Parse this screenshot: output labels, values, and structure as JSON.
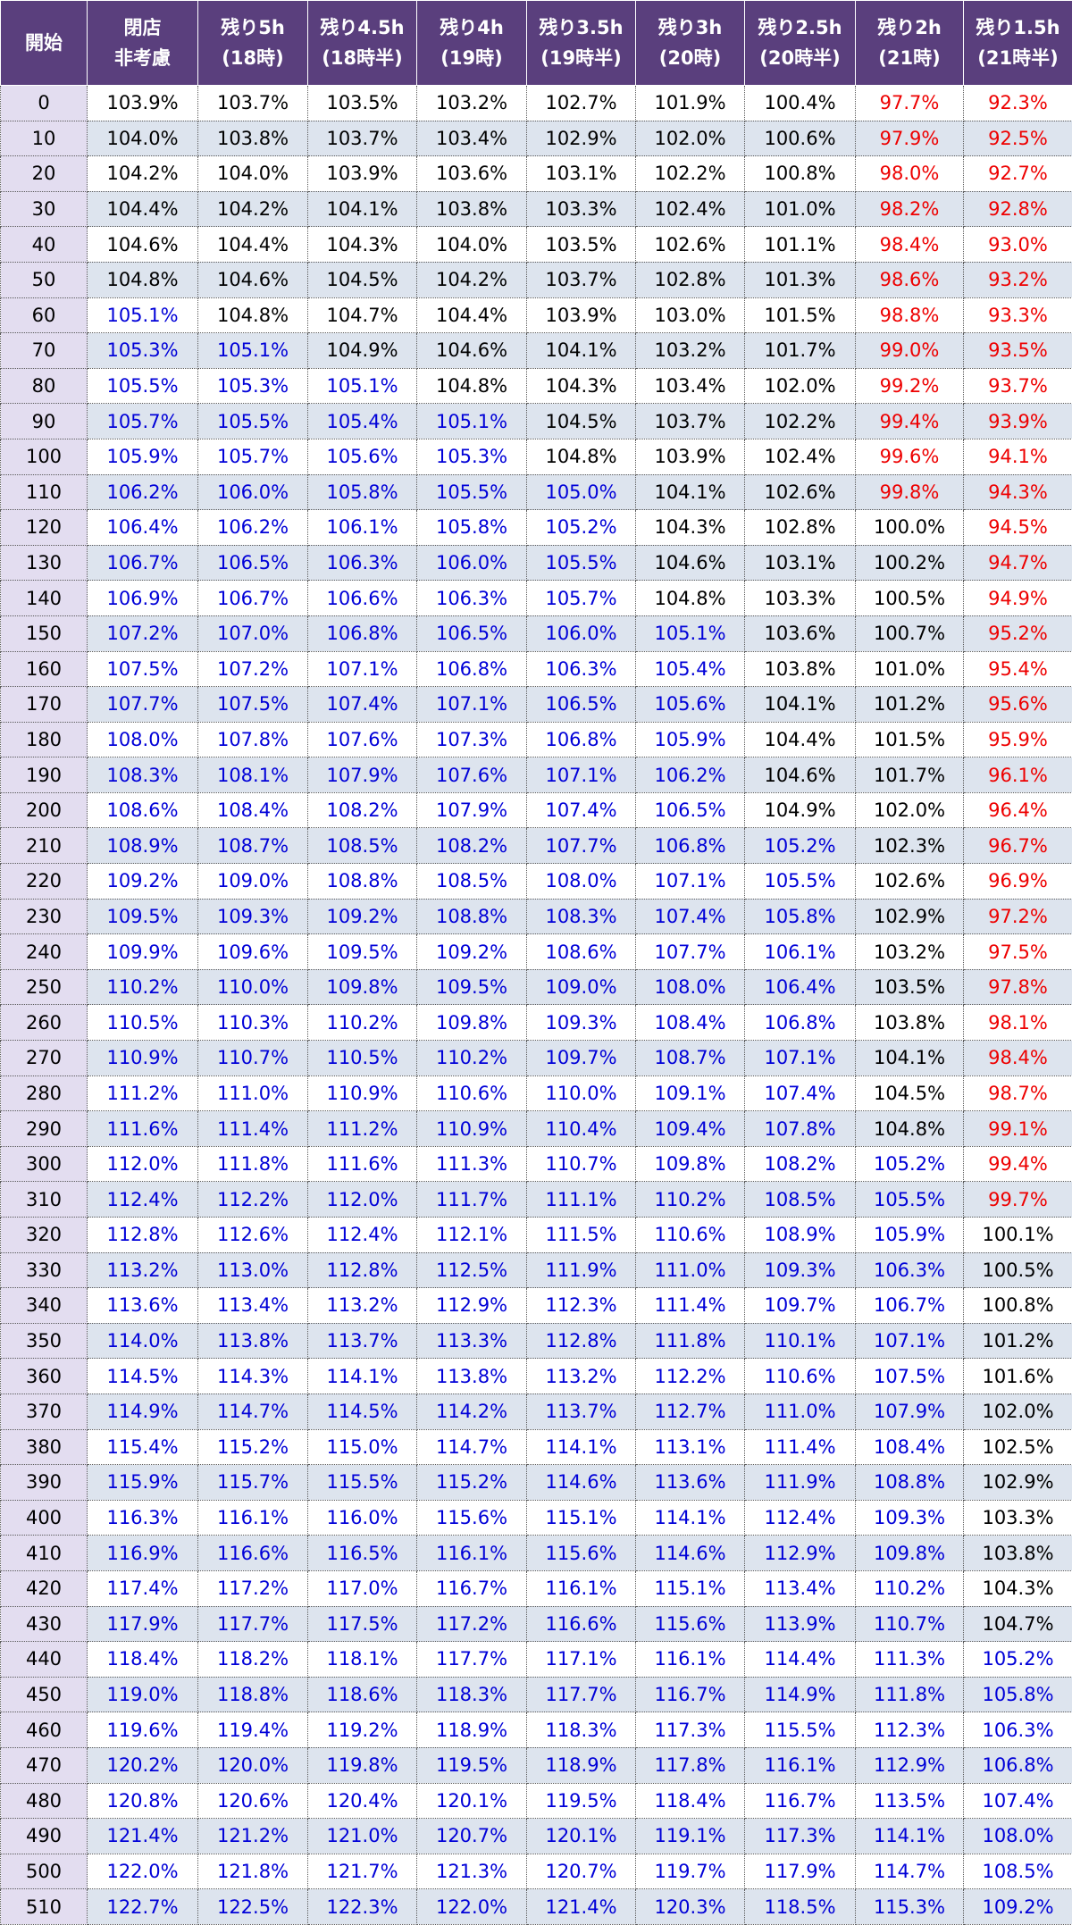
{
  "table": {
    "headers": [
      [
        "開始",
        ""
      ],
      [
        "閉店",
        "非考慮"
      ],
      [
        "残り5h",
        "(18時)"
      ],
      [
        "残り4.5h",
        "(18時半)"
      ],
      [
        "残り4h",
        "(19時)"
      ],
      [
        "残り3.5h",
        "(19時半)"
      ],
      [
        "残り3h",
        "(20時)"
      ],
      [
        "残り2.5h",
        "(20時半)"
      ],
      [
        "残り2h",
        "(21時)"
      ],
      [
        "残り1.5h",
        "(21時半)"
      ]
    ],
    "colors": {
      "header_bg": "#5a3f7d",
      "stripe_bg": "#dde4ee",
      "start_col_bg": "#e3ddf0",
      "below_100": "#ee0000",
      "near_100": "#000000",
      "above_105": "#0000d8"
    },
    "rows": [
      [
        "0",
        "103.9%",
        "103.7%",
        "103.5%",
        "103.2%",
        "102.7%",
        "101.9%",
        "100.4%",
        "97.7%",
        "92.3%"
      ],
      [
        "10",
        "104.0%",
        "103.8%",
        "103.7%",
        "103.4%",
        "102.9%",
        "102.0%",
        "100.6%",
        "97.9%",
        "92.5%"
      ],
      [
        "20",
        "104.2%",
        "104.0%",
        "103.9%",
        "103.6%",
        "103.1%",
        "102.2%",
        "100.8%",
        "98.0%",
        "92.7%"
      ],
      [
        "30",
        "104.4%",
        "104.2%",
        "104.1%",
        "103.8%",
        "103.3%",
        "102.4%",
        "101.0%",
        "98.2%",
        "92.8%"
      ],
      [
        "40",
        "104.6%",
        "104.4%",
        "104.3%",
        "104.0%",
        "103.5%",
        "102.6%",
        "101.1%",
        "98.4%",
        "93.0%"
      ],
      [
        "50",
        "104.8%",
        "104.6%",
        "104.5%",
        "104.2%",
        "103.7%",
        "102.8%",
        "101.3%",
        "98.6%",
        "93.2%"
      ],
      [
        "60",
        "105.1%",
        "104.8%",
        "104.7%",
        "104.4%",
        "103.9%",
        "103.0%",
        "101.5%",
        "98.8%",
        "93.3%"
      ],
      [
        "70",
        "105.3%",
        "105.1%",
        "104.9%",
        "104.6%",
        "104.1%",
        "103.2%",
        "101.7%",
        "99.0%",
        "93.5%"
      ],
      [
        "80",
        "105.5%",
        "105.3%",
        "105.1%",
        "104.8%",
        "104.3%",
        "103.4%",
        "102.0%",
        "99.2%",
        "93.7%"
      ],
      [
        "90",
        "105.7%",
        "105.5%",
        "105.4%",
        "105.1%",
        "104.5%",
        "103.7%",
        "102.2%",
        "99.4%",
        "93.9%"
      ],
      [
        "100",
        "105.9%",
        "105.7%",
        "105.6%",
        "105.3%",
        "104.8%",
        "103.9%",
        "102.4%",
        "99.6%",
        "94.1%"
      ],
      [
        "110",
        "106.2%",
        "106.0%",
        "105.8%",
        "105.5%",
        "105.0%",
        "104.1%",
        "102.6%",
        "99.8%",
        "94.3%"
      ],
      [
        "120",
        "106.4%",
        "106.2%",
        "106.1%",
        "105.8%",
        "105.2%",
        "104.3%",
        "102.8%",
        "100.0%",
        "94.5%"
      ],
      [
        "130",
        "106.7%",
        "106.5%",
        "106.3%",
        "106.0%",
        "105.5%",
        "104.6%",
        "103.1%",
        "100.2%",
        "94.7%"
      ],
      [
        "140",
        "106.9%",
        "106.7%",
        "106.6%",
        "106.3%",
        "105.7%",
        "104.8%",
        "103.3%",
        "100.5%",
        "94.9%"
      ],
      [
        "150",
        "107.2%",
        "107.0%",
        "106.8%",
        "106.5%",
        "106.0%",
        "105.1%",
        "103.6%",
        "100.7%",
        "95.2%"
      ],
      [
        "160",
        "107.5%",
        "107.2%",
        "107.1%",
        "106.8%",
        "106.3%",
        "105.4%",
        "103.8%",
        "101.0%",
        "95.4%"
      ],
      [
        "170",
        "107.7%",
        "107.5%",
        "107.4%",
        "107.1%",
        "106.5%",
        "105.6%",
        "104.1%",
        "101.2%",
        "95.6%"
      ],
      [
        "180",
        "108.0%",
        "107.8%",
        "107.6%",
        "107.3%",
        "106.8%",
        "105.9%",
        "104.4%",
        "101.5%",
        "95.9%"
      ],
      [
        "190",
        "108.3%",
        "108.1%",
        "107.9%",
        "107.6%",
        "107.1%",
        "106.2%",
        "104.6%",
        "101.7%",
        "96.1%"
      ],
      [
        "200",
        "108.6%",
        "108.4%",
        "108.2%",
        "107.9%",
        "107.4%",
        "106.5%",
        "104.9%",
        "102.0%",
        "96.4%"
      ],
      [
        "210",
        "108.9%",
        "108.7%",
        "108.5%",
        "108.2%",
        "107.7%",
        "106.8%",
        "105.2%",
        "102.3%",
        "96.7%"
      ],
      [
        "220",
        "109.2%",
        "109.0%",
        "108.8%",
        "108.5%",
        "108.0%",
        "107.1%",
        "105.5%",
        "102.6%",
        "96.9%"
      ],
      [
        "230",
        "109.5%",
        "109.3%",
        "109.2%",
        "108.8%",
        "108.3%",
        "107.4%",
        "105.8%",
        "102.9%",
        "97.2%"
      ],
      [
        "240",
        "109.9%",
        "109.6%",
        "109.5%",
        "109.2%",
        "108.6%",
        "107.7%",
        "106.1%",
        "103.2%",
        "97.5%"
      ],
      [
        "250",
        "110.2%",
        "110.0%",
        "109.8%",
        "109.5%",
        "109.0%",
        "108.0%",
        "106.4%",
        "103.5%",
        "97.8%"
      ],
      [
        "260",
        "110.5%",
        "110.3%",
        "110.2%",
        "109.8%",
        "109.3%",
        "108.4%",
        "106.8%",
        "103.8%",
        "98.1%"
      ],
      [
        "270",
        "110.9%",
        "110.7%",
        "110.5%",
        "110.2%",
        "109.7%",
        "108.7%",
        "107.1%",
        "104.1%",
        "98.4%"
      ],
      [
        "280",
        "111.2%",
        "111.0%",
        "110.9%",
        "110.6%",
        "110.0%",
        "109.1%",
        "107.4%",
        "104.5%",
        "98.7%"
      ],
      [
        "290",
        "111.6%",
        "111.4%",
        "111.2%",
        "110.9%",
        "110.4%",
        "109.4%",
        "107.8%",
        "104.8%",
        "99.1%"
      ],
      [
        "300",
        "112.0%",
        "111.8%",
        "111.6%",
        "111.3%",
        "110.7%",
        "109.8%",
        "108.2%",
        "105.2%",
        "99.4%"
      ],
      [
        "310",
        "112.4%",
        "112.2%",
        "112.0%",
        "111.7%",
        "111.1%",
        "110.2%",
        "108.5%",
        "105.5%",
        "99.7%"
      ],
      [
        "320",
        "112.8%",
        "112.6%",
        "112.4%",
        "112.1%",
        "111.5%",
        "110.6%",
        "108.9%",
        "105.9%",
        "100.1%"
      ],
      [
        "330",
        "113.2%",
        "113.0%",
        "112.8%",
        "112.5%",
        "111.9%",
        "111.0%",
        "109.3%",
        "106.3%",
        "100.5%"
      ],
      [
        "340",
        "113.6%",
        "113.4%",
        "113.2%",
        "112.9%",
        "112.3%",
        "111.4%",
        "109.7%",
        "106.7%",
        "100.8%"
      ],
      [
        "350",
        "114.0%",
        "113.8%",
        "113.7%",
        "113.3%",
        "112.8%",
        "111.8%",
        "110.1%",
        "107.1%",
        "101.2%"
      ],
      [
        "360",
        "114.5%",
        "114.3%",
        "114.1%",
        "113.8%",
        "113.2%",
        "112.2%",
        "110.6%",
        "107.5%",
        "101.6%"
      ],
      [
        "370",
        "114.9%",
        "114.7%",
        "114.5%",
        "114.2%",
        "113.7%",
        "112.7%",
        "111.0%",
        "107.9%",
        "102.0%"
      ],
      [
        "380",
        "115.4%",
        "115.2%",
        "115.0%",
        "114.7%",
        "114.1%",
        "113.1%",
        "111.4%",
        "108.4%",
        "102.5%"
      ],
      [
        "390",
        "115.9%",
        "115.7%",
        "115.5%",
        "115.2%",
        "114.6%",
        "113.6%",
        "111.9%",
        "108.8%",
        "102.9%"
      ],
      [
        "400",
        "116.3%",
        "116.1%",
        "116.0%",
        "115.6%",
        "115.1%",
        "114.1%",
        "112.4%",
        "109.3%",
        "103.3%"
      ],
      [
        "410",
        "116.9%",
        "116.6%",
        "116.5%",
        "116.1%",
        "115.6%",
        "114.6%",
        "112.9%",
        "109.8%",
        "103.8%"
      ],
      [
        "420",
        "117.4%",
        "117.2%",
        "117.0%",
        "116.7%",
        "116.1%",
        "115.1%",
        "113.4%",
        "110.2%",
        "104.3%"
      ],
      [
        "430",
        "117.9%",
        "117.7%",
        "117.5%",
        "117.2%",
        "116.6%",
        "115.6%",
        "113.9%",
        "110.7%",
        "104.7%"
      ],
      [
        "440",
        "118.4%",
        "118.2%",
        "118.1%",
        "117.7%",
        "117.1%",
        "116.1%",
        "114.4%",
        "111.3%",
        "105.2%"
      ],
      [
        "450",
        "119.0%",
        "118.8%",
        "118.6%",
        "118.3%",
        "117.7%",
        "116.7%",
        "114.9%",
        "111.8%",
        "105.8%"
      ],
      [
        "460",
        "119.6%",
        "119.4%",
        "119.2%",
        "118.9%",
        "118.3%",
        "117.3%",
        "115.5%",
        "112.3%",
        "106.3%"
      ],
      [
        "470",
        "120.2%",
        "120.0%",
        "119.8%",
        "119.5%",
        "118.9%",
        "117.8%",
        "116.1%",
        "112.9%",
        "106.8%"
      ],
      [
        "480",
        "120.8%",
        "120.6%",
        "120.4%",
        "120.1%",
        "119.5%",
        "118.4%",
        "116.7%",
        "113.5%",
        "107.4%"
      ],
      [
        "490",
        "121.4%",
        "121.2%",
        "121.0%",
        "120.7%",
        "120.1%",
        "119.1%",
        "117.3%",
        "114.1%",
        "108.0%"
      ],
      [
        "500",
        "122.0%",
        "121.8%",
        "121.7%",
        "121.3%",
        "120.7%",
        "119.7%",
        "117.9%",
        "114.7%",
        "108.5%"
      ],
      [
        "510",
        "122.7%",
        "122.5%",
        "122.3%",
        "122.0%",
        "121.4%",
        "120.3%",
        "118.5%",
        "115.3%",
        "109.2%"
      ]
    ]
  }
}
